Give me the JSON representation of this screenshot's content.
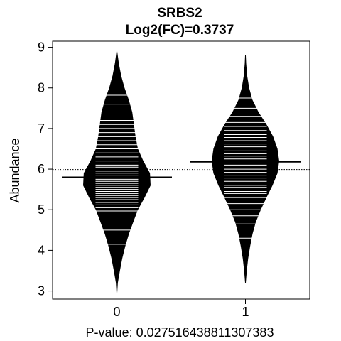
{
  "chart_data": {
    "type": "beanplot",
    "title": "SRBS2",
    "subtitle": "Log2(FC)=0.3737",
    "xlabel": "P-value: 0.027516438811307383",
    "ylabel": "Abundance",
    "categories": [
      "0",
      "1"
    ],
    "ylim": [
      2.8,
      9.15
    ],
    "yticks": [
      3,
      4,
      5,
      6,
      7,
      8,
      9
    ],
    "overall_mean": 5.99,
    "grid": false,
    "groups": [
      {
        "name": "0",
        "mean": 5.8,
        "density": [
          [
            2.95,
            0.0
          ],
          [
            3.2,
            0.02
          ],
          [
            3.5,
            0.08
          ],
          [
            3.8,
            0.15
          ],
          [
            4.1,
            0.24
          ],
          [
            4.4,
            0.35
          ],
          [
            4.7,
            0.48
          ],
          [
            5.0,
            0.62
          ],
          [
            5.3,
            0.82
          ],
          [
            5.6,
            1.0
          ],
          [
            5.9,
            0.98
          ],
          [
            6.2,
            0.78
          ],
          [
            6.5,
            0.62
          ],
          [
            6.8,
            0.55
          ],
          [
            7.1,
            0.5
          ],
          [
            7.4,
            0.45
          ],
          [
            7.7,
            0.35
          ],
          [
            8.0,
            0.22
          ],
          [
            8.3,
            0.12
          ],
          [
            8.6,
            0.05
          ],
          [
            8.9,
            0.0
          ]
        ],
        "points": [
          4.15,
          4.5,
          4.75,
          4.97,
          5.05,
          5.12,
          5.18,
          5.25,
          5.3,
          5.35,
          5.4,
          5.45,
          5.5,
          5.55,
          5.6,
          5.65,
          5.7,
          5.75,
          5.85,
          5.9,
          5.95,
          6.05,
          6.1,
          6.2,
          6.3,
          6.4,
          6.5,
          6.6,
          6.7,
          6.8,
          6.9,
          7.0,
          7.1,
          7.2,
          7.6,
          7.82
        ]
      },
      {
        "name": "1",
        "mean": 6.18,
        "density": [
          [
            3.2,
            0.0
          ],
          [
            3.5,
            0.03
          ],
          [
            3.8,
            0.07
          ],
          [
            4.1,
            0.13
          ],
          [
            4.4,
            0.2
          ],
          [
            4.7,
            0.3
          ],
          [
            5.0,
            0.45
          ],
          [
            5.3,
            0.62
          ],
          [
            5.6,
            0.8
          ],
          [
            5.9,
            0.95
          ],
          [
            6.2,
            1.0
          ],
          [
            6.5,
            0.95
          ],
          [
            6.8,
            0.82
          ],
          [
            7.1,
            0.62
          ],
          [
            7.4,
            0.38
          ],
          [
            7.7,
            0.2
          ],
          [
            8.0,
            0.1
          ],
          [
            8.3,
            0.04
          ],
          [
            8.6,
            0.01
          ],
          [
            8.8,
            0.0
          ]
        ],
        "points": [
          4.3,
          4.65,
          4.85,
          5.0,
          5.15,
          5.3,
          5.4,
          5.45,
          5.55,
          5.6,
          5.7,
          5.78,
          5.85,
          5.92,
          6.0,
          6.1,
          6.18,
          6.25,
          6.32,
          6.38,
          6.45,
          6.55,
          6.62,
          6.7,
          6.78,
          6.85,
          6.95,
          7.05,
          7.15,
          7.3,
          7.5,
          7.75
        ]
      }
    ]
  }
}
